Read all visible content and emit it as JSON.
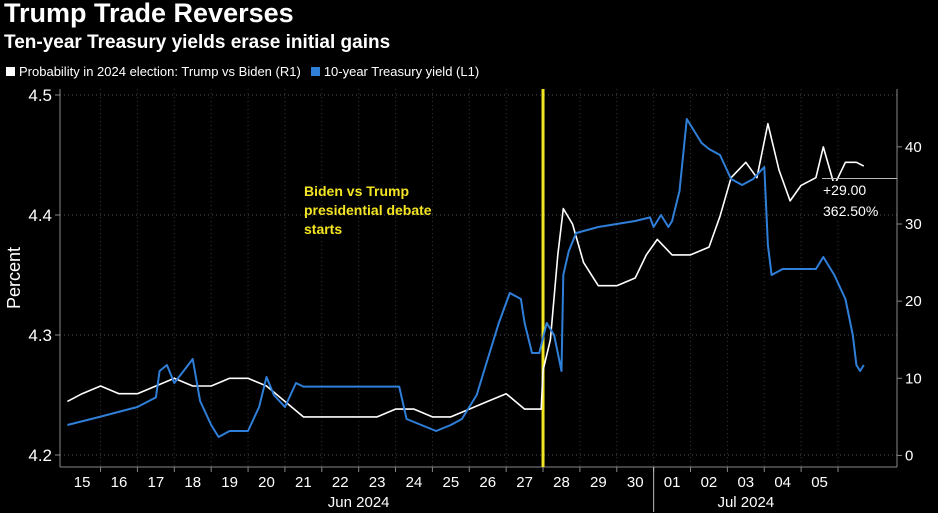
{
  "title": "Trump Trade Reverses",
  "subtitle": "Ten-year Treasury yields erase initial gains",
  "legend": [
    {
      "label": "Probability in 2024 election: Trump vs Biden  (R1)",
      "color": "#ffffff"
    },
    {
      "label": "10-year Treasury yield (L1)",
      "color": "#2f7fd9"
    }
  ],
  "annotation": {
    "line1": "Biden vs Trump",
    "line2": "presidential debate",
    "line3": "starts",
    "color": "#f4e523"
  },
  "last_values": {
    "change": "+29.00",
    "pct": "362.50%"
  },
  "chart_data": {
    "type": "line",
    "y_left": {
      "label": "Percent",
      "ticks": [
        4.2,
        4.3,
        4.4,
        4.5
      ],
      "range": [
        4.19,
        4.505
      ]
    },
    "y_right": {
      "ticks": [
        0,
        10,
        20,
        30,
        40
      ],
      "range": [
        -1.5,
        47.5
      ]
    },
    "x_ticks": [
      "15",
      "16",
      "17",
      "18",
      "19",
      "20",
      "21",
      "22",
      "23",
      "24",
      "25",
      "26",
      "27",
      "28",
      "29",
      "30",
      "01",
      "02",
      "03",
      "04",
      "05"
    ],
    "x_groups": [
      {
        "label": "Jun 2024",
        "from": 0,
        "to": 15
      },
      {
        "label": "Jul 2024",
        "from": 16,
        "to": 20
      }
    ],
    "debate_x": 27.5,
    "series": [
      {
        "name": "10-year Treasury yield",
        "axis": "left",
        "color": "#2f7fd9",
        "points": [
          [
            14.6,
            4.225
          ],
          [
            15.5,
            4.232
          ],
          [
            16.5,
            4.24
          ],
          [
            17.0,
            4.248
          ],
          [
            17.1,
            4.27
          ],
          [
            17.3,
            4.275
          ],
          [
            17.5,
            4.26
          ],
          [
            17.8,
            4.272
          ],
          [
            18.0,
            4.28
          ],
          [
            18.2,
            4.245
          ],
          [
            18.5,
            4.225
          ],
          [
            18.7,
            4.215
          ],
          [
            19.0,
            4.22
          ],
          [
            19.5,
            4.22
          ],
          [
            19.8,
            4.24
          ],
          [
            20.0,
            4.265
          ],
          [
            20.2,
            4.25
          ],
          [
            20.5,
            4.24
          ],
          [
            20.8,
            4.26
          ],
          [
            21.0,
            4.257
          ],
          [
            22.0,
            4.257
          ],
          [
            23.0,
            4.257
          ],
          [
            23.6,
            4.257
          ],
          [
            23.8,
            4.23
          ],
          [
            24.2,
            4.225
          ],
          [
            24.6,
            4.22
          ],
          [
            25.0,
            4.225
          ],
          [
            25.3,
            4.23
          ],
          [
            25.7,
            4.25
          ],
          [
            26.0,
            4.28
          ],
          [
            26.3,
            4.31
          ],
          [
            26.6,
            4.335
          ],
          [
            26.9,
            4.33
          ],
          [
            27.0,
            4.31
          ],
          [
            27.2,
            4.285
          ],
          [
            27.4,
            4.285
          ],
          [
            27.6,
            4.31
          ],
          [
            27.8,
            4.3
          ],
          [
            28.0,
            4.27
          ],
          [
            28.05,
            4.35
          ],
          [
            28.2,
            4.37
          ],
          [
            28.4,
            4.385
          ],
          [
            29.0,
            4.39
          ],
          [
            30.0,
            4.395
          ],
          [
            30.4,
            4.398
          ],
          [
            30.5,
            4.39
          ],
          [
            30.7,
            4.4
          ],
          [
            30.9,
            4.39
          ],
          [
            31.0,
            4.395
          ],
          [
            31.2,
            4.42
          ],
          [
            31.4,
            4.48
          ],
          [
            31.6,
            4.47
          ],
          [
            31.8,
            4.46
          ],
          [
            32.0,
            4.455
          ],
          [
            32.3,
            4.45
          ],
          [
            32.6,
            4.43
          ],
          [
            32.9,
            4.425
          ],
          [
            33.2,
            4.43
          ],
          [
            33.5,
            4.44
          ],
          [
            33.6,
            4.375
          ],
          [
            33.7,
            4.35
          ],
          [
            34.0,
            4.355
          ],
          [
            34.5,
            4.355
          ],
          [
            34.9,
            4.355
          ],
          [
            35.1,
            4.365
          ],
          [
            35.4,
            4.35
          ],
          [
            35.7,
            4.33
          ],
          [
            35.9,
            4.3
          ],
          [
            36.0,
            4.275
          ],
          [
            36.1,
            4.27
          ],
          [
            36.2,
            4.275
          ]
        ]
      },
      {
        "name": "Probability in 2024 election: Trump vs Biden",
        "axis": "right",
        "color": "#ffffff",
        "points": [
          [
            14.6,
            7
          ],
          [
            15.0,
            8
          ],
          [
            15.5,
            9
          ],
          [
            16.0,
            8
          ],
          [
            16.5,
            8
          ],
          [
            17.0,
            9
          ],
          [
            17.5,
            10
          ],
          [
            18.0,
            9
          ],
          [
            18.5,
            9
          ],
          [
            19.0,
            10
          ],
          [
            19.5,
            10
          ],
          [
            20.0,
            9
          ],
          [
            20.5,
            7
          ],
          [
            21.0,
            5
          ],
          [
            21.5,
            5
          ],
          [
            22.0,
            5
          ],
          [
            22.5,
            5
          ],
          [
            23.0,
            5
          ],
          [
            23.5,
            6
          ],
          [
            24.0,
            6
          ],
          [
            24.5,
            5
          ],
          [
            25.0,
            5
          ],
          [
            25.5,
            6
          ],
          [
            26.0,
            7
          ],
          [
            26.5,
            8
          ],
          [
            27.0,
            6
          ],
          [
            27.45,
            6
          ],
          [
            27.5,
            11
          ],
          [
            27.7,
            15
          ],
          [
            27.9,
            26
          ],
          [
            28.05,
            32
          ],
          [
            28.3,
            30
          ],
          [
            28.6,
            25
          ],
          [
            29.0,
            22
          ],
          [
            29.5,
            22
          ],
          [
            30.0,
            23
          ],
          [
            30.3,
            26
          ],
          [
            30.6,
            28
          ],
          [
            31.0,
            26
          ],
          [
            31.5,
            26
          ],
          [
            32.0,
            27
          ],
          [
            32.3,
            31
          ],
          [
            32.6,
            36
          ],
          [
            33.0,
            38
          ],
          [
            33.3,
            36
          ],
          [
            33.6,
            43
          ],
          [
            33.9,
            37
          ],
          [
            34.2,
            33
          ],
          [
            34.5,
            35
          ],
          [
            34.9,
            36
          ],
          [
            35.1,
            40
          ],
          [
            35.4,
            35
          ],
          [
            35.7,
            38
          ],
          [
            36.0,
            38
          ],
          [
            36.2,
            37.5
          ]
        ]
      }
    ]
  }
}
